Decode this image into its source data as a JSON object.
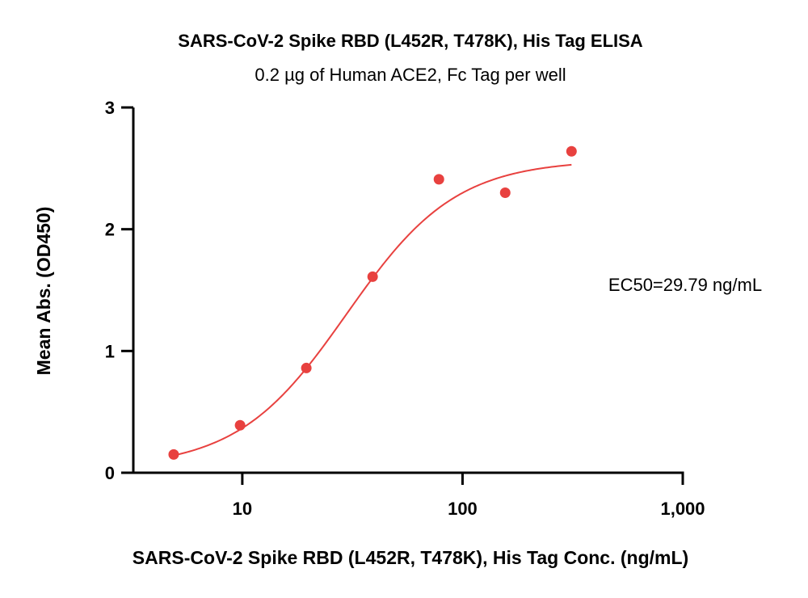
{
  "chart_data": {
    "type": "scatter",
    "title": "SARS-CoV-2 Spike RBD (L452R, T478K), His Tag ELISA",
    "subtitle": "0.2 µg of Human ACE2, Fc Tag per well",
    "xlabel": "SARS-CoV-2 Spike RBD (L452R, T478K), His Tag Conc. (ng/mL)",
    "ylabel": "Mean Abs. (OD450)",
    "x_scale": "log",
    "xlim": [
      3.2,
      1000
    ],
    "ylim": [
      0,
      3
    ],
    "x_ticks": [
      {
        "value": 10,
        "label": "10"
      },
      {
        "value": 100,
        "label": "100"
      },
      {
        "value": 1000,
        "label": "1,000"
      }
    ],
    "y_ticks": [
      {
        "value": 0,
        "label": "0"
      },
      {
        "value": 1,
        "label": "1"
      },
      {
        "value": 2,
        "label": "2"
      },
      {
        "value": 3,
        "label": "3"
      }
    ],
    "grid": false,
    "color": "#e8413f",
    "points": [
      {
        "x": 4.88,
        "y": 0.15
      },
      {
        "x": 9.77,
        "y": 0.39
      },
      {
        "x": 19.53,
        "y": 0.86
      },
      {
        "x": 39.06,
        "y": 1.61
      },
      {
        "x": 78.13,
        "y": 2.41
      },
      {
        "x": 156.25,
        "y": 2.3
      },
      {
        "x": 312.5,
        "y": 2.64
      }
    ],
    "fit": {
      "model": "4PL",
      "bottom": 0.04,
      "top": 2.57,
      "ec50": 29.79,
      "hill": 1.75,
      "x_range": [
        4.88,
        312.5
      ]
    },
    "annotation": "EC50=29.79 ng/mL"
  }
}
